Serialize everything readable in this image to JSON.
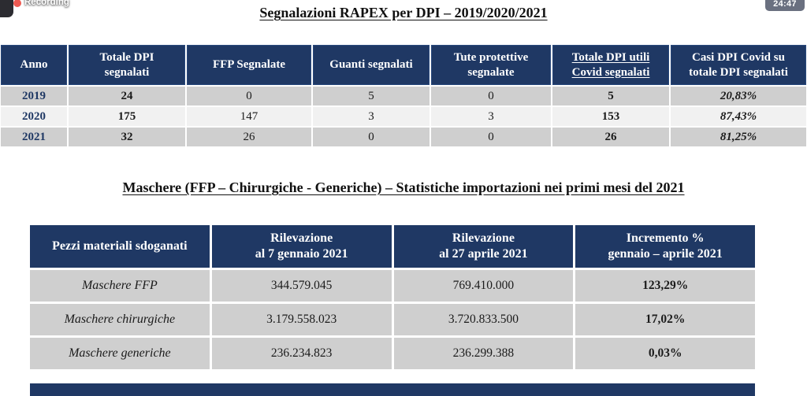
{
  "meeting": {
    "recording_label": "Recording",
    "timer": "24:47"
  },
  "colors": {
    "header_navy": "#1f3864",
    "row_gray": "#cfcfcf",
    "row_light": "#f1f1f1",
    "recording_red": "#ee5a52",
    "timer_chip_gray": "#6a7080"
  },
  "section1": {
    "title": "Segnalazioni RAPEX per DPI – 2019/2020/2021",
    "table": {
      "headers": [
        {
          "l1": "Anno"
        },
        {
          "l1": "Totale DPI",
          "l2": "segnalati"
        },
        {
          "l1": "FFP Segnalate"
        },
        {
          "l1": "Guanti segnalati"
        },
        {
          "l1": "Tute protettive",
          "l2": "segnalate"
        },
        {
          "l1": "Totale DPI utili",
          "l2": "Covid segnalati"
        },
        {
          "l1": "Casi DPI Covid su",
          "l2": "totale DPI segnalati"
        }
      ],
      "rows": [
        [
          "2019",
          "24",
          "0",
          "5",
          "0",
          "5",
          "20,83%"
        ],
        [
          "2020",
          "175",
          "147",
          "3",
          "3",
          "153",
          "87,43%"
        ],
        [
          "2021",
          "32",
          "26",
          "0",
          "0",
          "26",
          "81,25%"
        ]
      ]
    }
  },
  "section2": {
    "title": "Maschere (FFP – Chirurgiche - Generiche) – Statistiche importazioni nei primi mesi del 2021",
    "table": {
      "headers": [
        {
          "l1": "Pezzi materiali sdoganati"
        },
        {
          "l1": "Rilevazione",
          "l2": "al 7 gennaio 2021"
        },
        {
          "l1": "Rilevazione",
          "l2": "al 27 aprile 2021"
        },
        {
          "l1": "Incremento %",
          "l2": "gennaio – aprile 2021"
        }
      ],
      "rows": [
        [
          "Maschere FFP",
          "344.579.045",
          "769.410.000",
          "123,29%"
        ],
        [
          "Maschere chirurgiche",
          "3.179.558.023",
          "3.720.833.500",
          "17,02%"
        ],
        [
          "Maschere generiche",
          "236.234.823",
          "236.299.388",
          "0,03%"
        ]
      ]
    }
  }
}
